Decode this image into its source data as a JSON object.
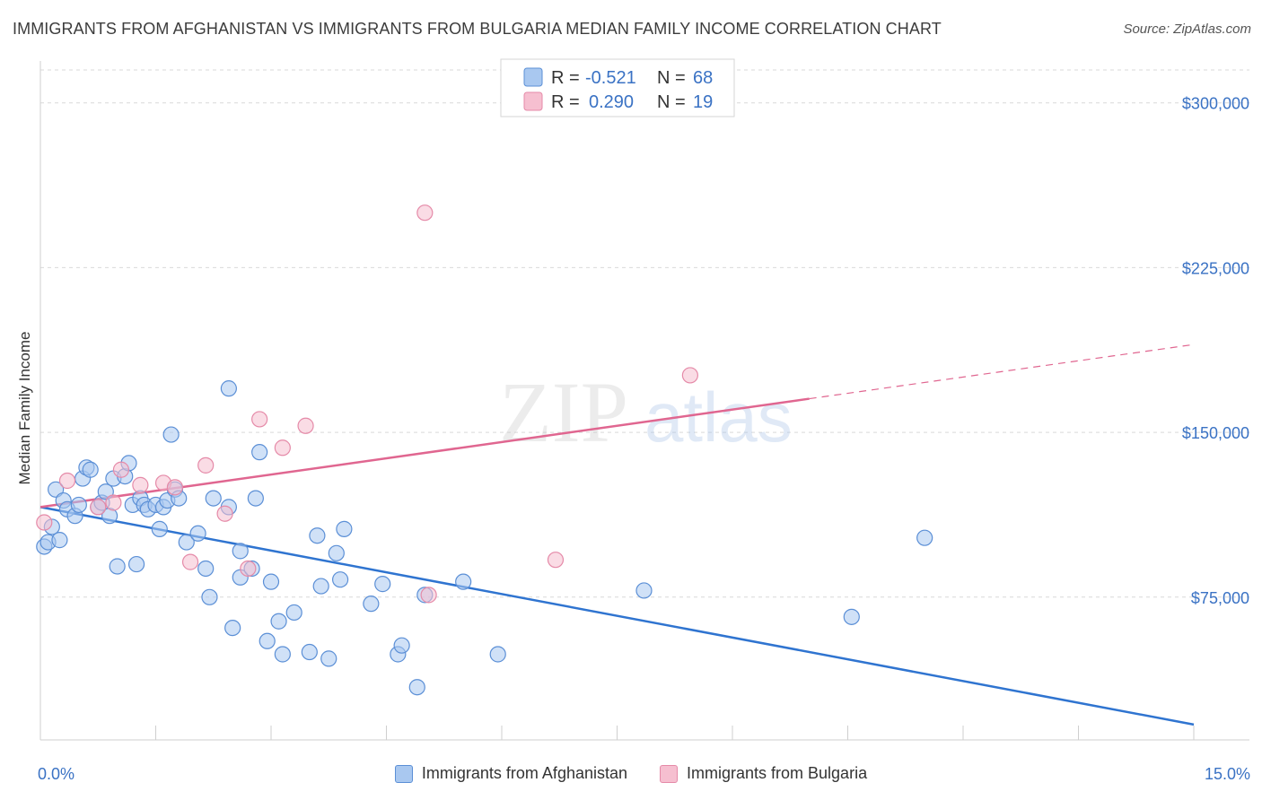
{
  "header": {
    "title": "IMMIGRANTS FROM AFGHANISTAN VS IMMIGRANTS FROM BULGARIA MEDIAN FAMILY INCOME CORRELATION CHART",
    "source": "Source: ZipAtlas.com"
  },
  "watermark": {
    "zip": "ZIP",
    "atlas": "atlas"
  },
  "colors": {
    "afghanistan_fill": "#a9c8f0",
    "afghanistan_stroke": "#5b8fd6",
    "afghanistan_line": "#2f74d0",
    "bulgaria_fill": "#f6bfd0",
    "bulgaria_stroke": "#e58aa8",
    "bulgaria_line": "#e06690",
    "tick_text": "#3a72c4",
    "grid": "#d9d9d9"
  },
  "legend": {
    "rows": [
      {
        "r_label": "R =",
        "r_value": "-0.521",
        "n_label": "N =",
        "n_value": "68"
      },
      {
        "r_label": "R =",
        "r_value": "0.290",
        "n_label": "N =",
        "n_value": "19"
      }
    ]
  },
  "bottom_legend": {
    "afghanistan": "Immigrants from Afghanistan",
    "bulgaria": "Immigrants from Bulgaria"
  },
  "chart_data": {
    "type": "scatter",
    "title": "IMMIGRANTS FROM AFGHANISTAN VS IMMIGRANTS FROM BULGARIA MEDIAN FAMILY INCOME CORRELATION CHART",
    "ylabel": "Median Family Income",
    "xlabel": "",
    "xlim": [
      0,
      15
    ],
    "ylim": [
      10000,
      315000
    ],
    "x_ticks": [
      {
        "value": 0,
        "label": "0.0%"
      },
      {
        "value": 15,
        "label": "15.0%"
      }
    ],
    "y_ticks": [
      {
        "value": 75000,
        "label": "$75,000"
      },
      {
        "value": 150000,
        "label": "$150,000"
      },
      {
        "value": 225000,
        "label": "$225,000"
      },
      {
        "value": 300000,
        "label": "$300,000"
      }
    ],
    "grid": true,
    "legend_placement": "top-center",
    "series": [
      {
        "name": "Immigrants from Afghanistan",
        "r": -0.521,
        "n": 68,
        "trend": {
          "x0": 0,
          "y0": 116000,
          "x1": 15,
          "y1": 17000,
          "dashed_from": null
        },
        "points": [
          [
            0.05,
            98000
          ],
          [
            0.1,
            100000
          ],
          [
            0.15,
            107000
          ],
          [
            0.2,
            124000
          ],
          [
            0.25,
            101000
          ],
          [
            0.3,
            119000
          ],
          [
            0.35,
            115000
          ],
          [
            0.45,
            112000
          ],
          [
            0.5,
            117000
          ],
          [
            0.55,
            129000
          ],
          [
            0.6,
            134000
          ],
          [
            0.65,
            133000
          ],
          [
            0.75,
            116000
          ],
          [
            0.8,
            118000
          ],
          [
            0.85,
            123000
          ],
          [
            0.9,
            112000
          ],
          [
            0.95,
            129000
          ],
          [
            1.0,
            89000
          ],
          [
            1.1,
            130000
          ],
          [
            1.15,
            136000
          ],
          [
            1.2,
            117000
          ],
          [
            1.25,
            90000
          ],
          [
            1.3,
            120000
          ],
          [
            1.35,
            117000
          ],
          [
            1.4,
            115000
          ],
          [
            1.5,
            117000
          ],
          [
            1.55,
            106000
          ],
          [
            1.6,
            116000
          ],
          [
            1.65,
            119000
          ],
          [
            1.7,
            149000
          ],
          [
            1.75,
            124000
          ],
          [
            1.8,
            120000
          ],
          [
            1.9,
            100000
          ],
          [
            2.05,
            104000
          ],
          [
            2.15,
            88000
          ],
          [
            2.2,
            75000
          ],
          [
            2.25,
            120000
          ],
          [
            2.45,
            116000
          ],
          [
            2.45,
            170000
          ],
          [
            2.5,
            61000
          ],
          [
            2.6,
            96000
          ],
          [
            2.6,
            84000
          ],
          [
            2.75,
            88000
          ],
          [
            2.8,
            120000
          ],
          [
            2.85,
            141000
          ],
          [
            2.95,
            55000
          ],
          [
            3.0,
            82000
          ],
          [
            3.1,
            64000
          ],
          [
            3.15,
            49000
          ],
          [
            3.3,
            68000
          ],
          [
            3.5,
            50000
          ],
          [
            3.6,
            103000
          ],
          [
            3.65,
            80000
          ],
          [
            3.75,
            47000
          ],
          [
            3.85,
            95000
          ],
          [
            3.9,
            83000
          ],
          [
            3.95,
            106000
          ],
          [
            4.3,
            72000
          ],
          [
            4.45,
            81000
          ],
          [
            4.65,
            49000
          ],
          [
            4.7,
            53000
          ],
          [
            4.9,
            34000
          ],
          [
            5.0,
            76000
          ],
          [
            5.5,
            82000
          ],
          [
            5.95,
            49000
          ],
          [
            7.85,
            78000
          ],
          [
            10.55,
            66000
          ],
          [
            11.5,
            102000
          ]
        ]
      },
      {
        "name": "Immigrants from Bulgaria",
        "r": 0.29,
        "n": 19,
        "trend": {
          "x0": 0,
          "y0": 116000,
          "x1": 15,
          "y1": 190000,
          "dashed_from": 10
        },
        "points": [
          [
            0.05,
            109000
          ],
          [
            0.35,
            128000
          ],
          [
            0.75,
            116000
          ],
          [
            0.95,
            118000
          ],
          [
            1.05,
            133000
          ],
          [
            1.3,
            126000
          ],
          [
            1.6,
            127000
          ],
          [
            1.75,
            125000
          ],
          [
            1.95,
            91000
          ],
          [
            2.15,
            135000
          ],
          [
            2.4,
            113000
          ],
          [
            2.7,
            88000
          ],
          [
            2.85,
            156000
          ],
          [
            3.15,
            143000
          ],
          [
            3.45,
            153000
          ],
          [
            5.05,
            76000
          ],
          [
            5.0,
            250000
          ],
          [
            6.7,
            92000
          ],
          [
            8.45,
            176000
          ]
        ]
      }
    ]
  }
}
